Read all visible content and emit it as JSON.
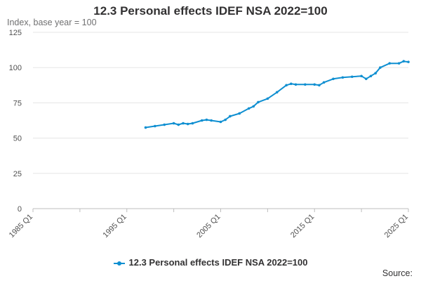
{
  "chart_data": {
    "type": "line",
    "title": "12.3 Personal effects IDEF NSA 2022=100",
    "ylabel": "Index, base year = 100",
    "xlabel": "",
    "ylim": [
      0,
      125
    ],
    "xlim": [
      1985,
      2025
    ],
    "yticks": [
      0,
      25,
      50,
      75,
      100,
      125
    ],
    "xticks": [
      {
        "label": "1985 Q1",
        "value": 1985
      },
      {
        "label": "1995 Q1",
        "value": 1995
      },
      {
        "label": "2005 Q1",
        "value": 2005
      },
      {
        "label": "2015 Q1",
        "value": 2015
      },
      {
        "label": "2025 Q1",
        "value": 2025
      }
    ],
    "legend_position": "bottom",
    "series": [
      {
        "name": "12.3 Personal effects IDEF NSA 2022=100",
        "color": "#0f8fd1",
        "x": [
          1997.0,
          1998.0,
          1999.0,
          2000.0,
          2000.5,
          2001.0,
          2001.5,
          2002.0,
          2003.0,
          2003.5,
          2004.0,
          2005.0,
          2005.5,
          2006.0,
          2007.0,
          2008.0,
          2008.5,
          2009.0,
          2010.0,
          2011.0,
          2012.0,
          2012.5,
          2013.0,
          2014.0,
          2015.0,
          2015.5,
          2016.0,
          2017.0,
          2018.0,
          2019.0,
          2020.0,
          2020.5,
          2021.0,
          2021.5,
          2022.0,
          2023.0,
          2024.0,
          2024.5,
          2025.0
        ],
        "y": [
          57.5,
          58.5,
          59.5,
          60.5,
          59.5,
          60.5,
          60.0,
          60.5,
          62.5,
          63.0,
          62.5,
          61.5,
          63.0,
          65.5,
          67.5,
          71.0,
          72.5,
          75.5,
          78.0,
          82.5,
          87.5,
          88.5,
          88.0,
          88.0,
          88.0,
          87.5,
          89.5,
          92.0,
          93.0,
          93.5,
          94.0,
          92.0,
          94.0,
          96.0,
          100.0,
          103.0,
          103.0,
          104.5,
          104.0
        ]
      }
    ],
    "source_label": "Source:"
  }
}
